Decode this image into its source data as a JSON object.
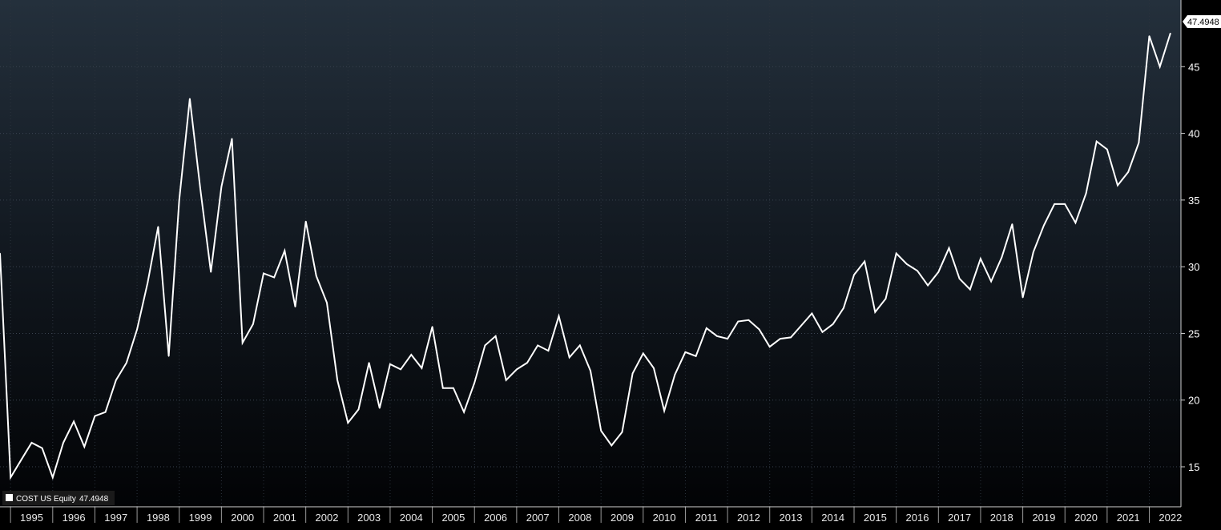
{
  "chart_data": {
    "type": "line",
    "title": "",
    "xlabel": "",
    "ylabel": "",
    "x_tick_labels": [
      "1995",
      "1996",
      "1997",
      "1998",
      "1999",
      "2000",
      "2001",
      "2002",
      "2003",
      "2004",
      "2005",
      "2006",
      "2007",
      "2008",
      "2009",
      "2010",
      "2011",
      "2012",
      "2013",
      "2014",
      "2015",
      "2016",
      "2017",
      "2018",
      "2019",
      "2020",
      "2021",
      "2022"
    ],
    "y_ticks": [
      15,
      20,
      25,
      30,
      35,
      40,
      45
    ],
    "ylim": [
      12,
      50
    ],
    "xlim": [
      1994.75,
      2022.75
    ],
    "grid": true,
    "legend": {
      "position": "bottom-left",
      "entries": [
        {
          "name": "COST US Equity",
          "value": "47.4948"
        }
      ]
    },
    "last_value_label": "47.4948",
    "series": [
      {
        "name": "COST US Equity",
        "color": "#ffffff",
        "x": [
          1994.75,
          1995.0,
          1995.25,
          1995.5,
          1995.75,
          1996.0,
          1996.25,
          1996.5,
          1996.75,
          1997.0,
          1997.25,
          1997.5,
          1997.75,
          1998.0,
          1998.25,
          1998.5,
          1998.75,
          1999.0,
          1999.25,
          1999.5,
          1999.75,
          2000.0,
          2000.25,
          2000.5,
          2000.75,
          2001.0,
          2001.25,
          2001.5,
          2001.75,
          2002.0,
          2002.25,
          2002.5,
          2002.75,
          2003.0,
          2003.25,
          2003.5,
          2003.75,
          2004.0,
          2004.25,
          2004.5,
          2004.75,
          2005.0,
          2005.25,
          2005.5,
          2005.75,
          2006.0,
          2006.25,
          2006.5,
          2006.75,
          2007.0,
          2007.25,
          2007.5,
          2007.75,
          2008.0,
          2008.25,
          2008.5,
          2008.75,
          2009.0,
          2009.25,
          2009.5,
          2009.75,
          2010.0,
          2010.25,
          2010.5,
          2010.75,
          2011.0,
          2011.25,
          2011.5,
          2011.75,
          2012.0,
          2012.25,
          2012.5,
          2012.75,
          2013.0,
          2013.25,
          2013.5,
          2013.75,
          2014.0,
          2014.25,
          2014.5,
          2014.75,
          2015.0,
          2015.25,
          2015.5,
          2015.75,
          2016.0,
          2016.25,
          2016.5,
          2016.75,
          2017.0,
          2017.25,
          2017.5,
          2017.75,
          2018.0,
          2018.25,
          2018.5,
          2018.75,
          2019.0,
          2019.25,
          2019.5,
          2019.75,
          2020.0,
          2020.25,
          2020.5,
          2020.75,
          2021.0,
          2021.25,
          2021.5,
          2021.75,
          2022.0,
          2022.25,
          2022.5
        ],
        "values": [
          31.0,
          14.2,
          15.5,
          16.8,
          16.4,
          14.2,
          16.8,
          18.4,
          16.5,
          18.8,
          19.1,
          21.5,
          22.8,
          25.3,
          28.8,
          33.0,
          23.3,
          35.0,
          42.6,
          35.8,
          29.6,
          36.0,
          39.6,
          24.3,
          25.7,
          29.5,
          29.2,
          31.2,
          27.0,
          33.4,
          29.3,
          27.3,
          21.5,
          18.3,
          19.3,
          22.8,
          19.4,
          22.7,
          22.3,
          23.4,
          22.4,
          25.5,
          20.9,
          20.9,
          19.1,
          21.3,
          24.1,
          24.8,
          21.5,
          22.3,
          22.8,
          24.1,
          23.7,
          26.3,
          23.2,
          24.1,
          22.2,
          17.7,
          16.6,
          17.6,
          22.0,
          23.5,
          22.4,
          19.2,
          21.9,
          23.6,
          23.3,
          25.4,
          24.8,
          24.6,
          25.9,
          26.0,
          25.3,
          24.0,
          24.6,
          24.7,
          25.6,
          26.5,
          25.1,
          25.7,
          26.9,
          29.4,
          30.4,
          26.6,
          27.6,
          31.0,
          30.2,
          29.7,
          28.6,
          29.6,
          31.4,
          29.1,
          28.3,
          30.6,
          28.9,
          30.7,
          33.2,
          27.7,
          31.1,
          33.1,
          34.7,
          34.7,
          33.3,
          35.5,
          39.4,
          38.8,
          36.1,
          37.1,
          39.3,
          47.3,
          45.0,
          47.4948
        ]
      }
    ]
  }
}
